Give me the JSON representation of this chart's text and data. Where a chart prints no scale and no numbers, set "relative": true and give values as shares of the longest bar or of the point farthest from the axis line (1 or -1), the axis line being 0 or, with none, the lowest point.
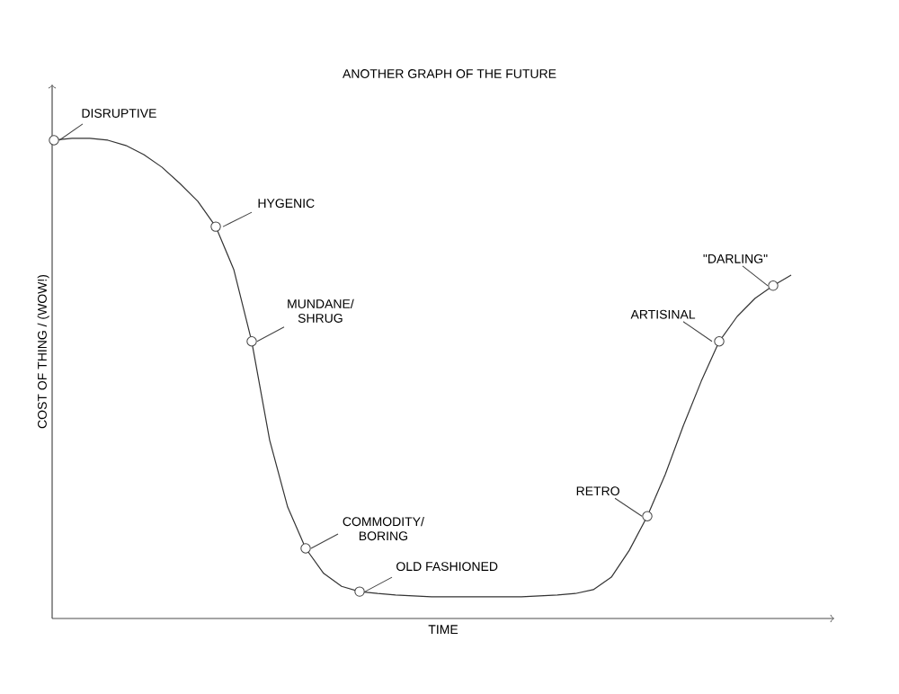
{
  "chart_data": {
    "type": "line",
    "title": "ANOTHER GRAPH OF THE FUTURE",
    "xlabel": "TIME",
    "ylabel": "COST OF THING / (WOW!)",
    "relative": true,
    "marker": "none",
    "line_style": "solid",
    "color": "#333333",
    "categories": [
      null,
      null,
      null,
      null,
      null,
      null,
      null,
      null,
      null,
      null,
      null,
      null,
      null,
      null,
      null,
      null,
      null,
      null,
      null,
      null,
      null,
      null,
      null,
      null,
      null,
      null,
      null,
      null,
      null,
      null,
      null,
      null,
      null,
      null,
      null,
      null,
      null,
      null,
      null,
      null,
      null,
      null
    ],
    "values": [
      0.996,
      1,
      1,
      0.996,
      0.985,
      0.966,
      0.94,
      0.906,
      0.869,
      0.816,
      0.727,
      0.577,
      0.371,
      0.232,
      0.146,
      0.094,
      0.067,
      0.056,
      0.052,
      0.049,
      0.047,
      0.045,
      0.045,
      0.045,
      0.045,
      0.045,
      0.045,
      0.047,
      0.049,
      0.052,
      0.06,
      0.086,
      0.142,
      0.213,
      0.3,
      0.401,
      0.494,
      0.577,
      0.629,
      0.667,
      0.693,
      0.715
    ],
    "annotations": [
      "DISRUPTIVE",
      "HYGENIC",
      "MUNDANE/ SHRUG",
      "COMMODITY/ BORING",
      "OLD FASHIONED",
      "RETRO",
      "ARTISINAL",
      "\"DARLING\""
    ]
  }
}
